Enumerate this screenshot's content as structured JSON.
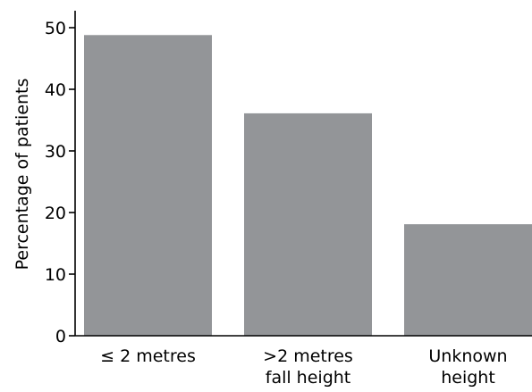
{
  "chart_data": {
    "type": "bar",
    "title": "",
    "xlabel": "",
    "ylabel": "Percentage of patients",
    "categories": [
      [
        "≤ 2 metres"
      ],
      [
        ">2 metres",
        "fall height"
      ],
      [
        "Unknown",
        "height"
      ]
    ],
    "values": [
      48.8,
      36.1,
      18.1
    ],
    "ylim": [
      0,
      50
    ],
    "yticks": [
      "0",
      "10",
      "20",
      "30",
      "40",
      "50"
    ],
    "grid": false,
    "legend": "none",
    "colors": {
      "bar": "#939598",
      "axis": "#000000"
    }
  }
}
